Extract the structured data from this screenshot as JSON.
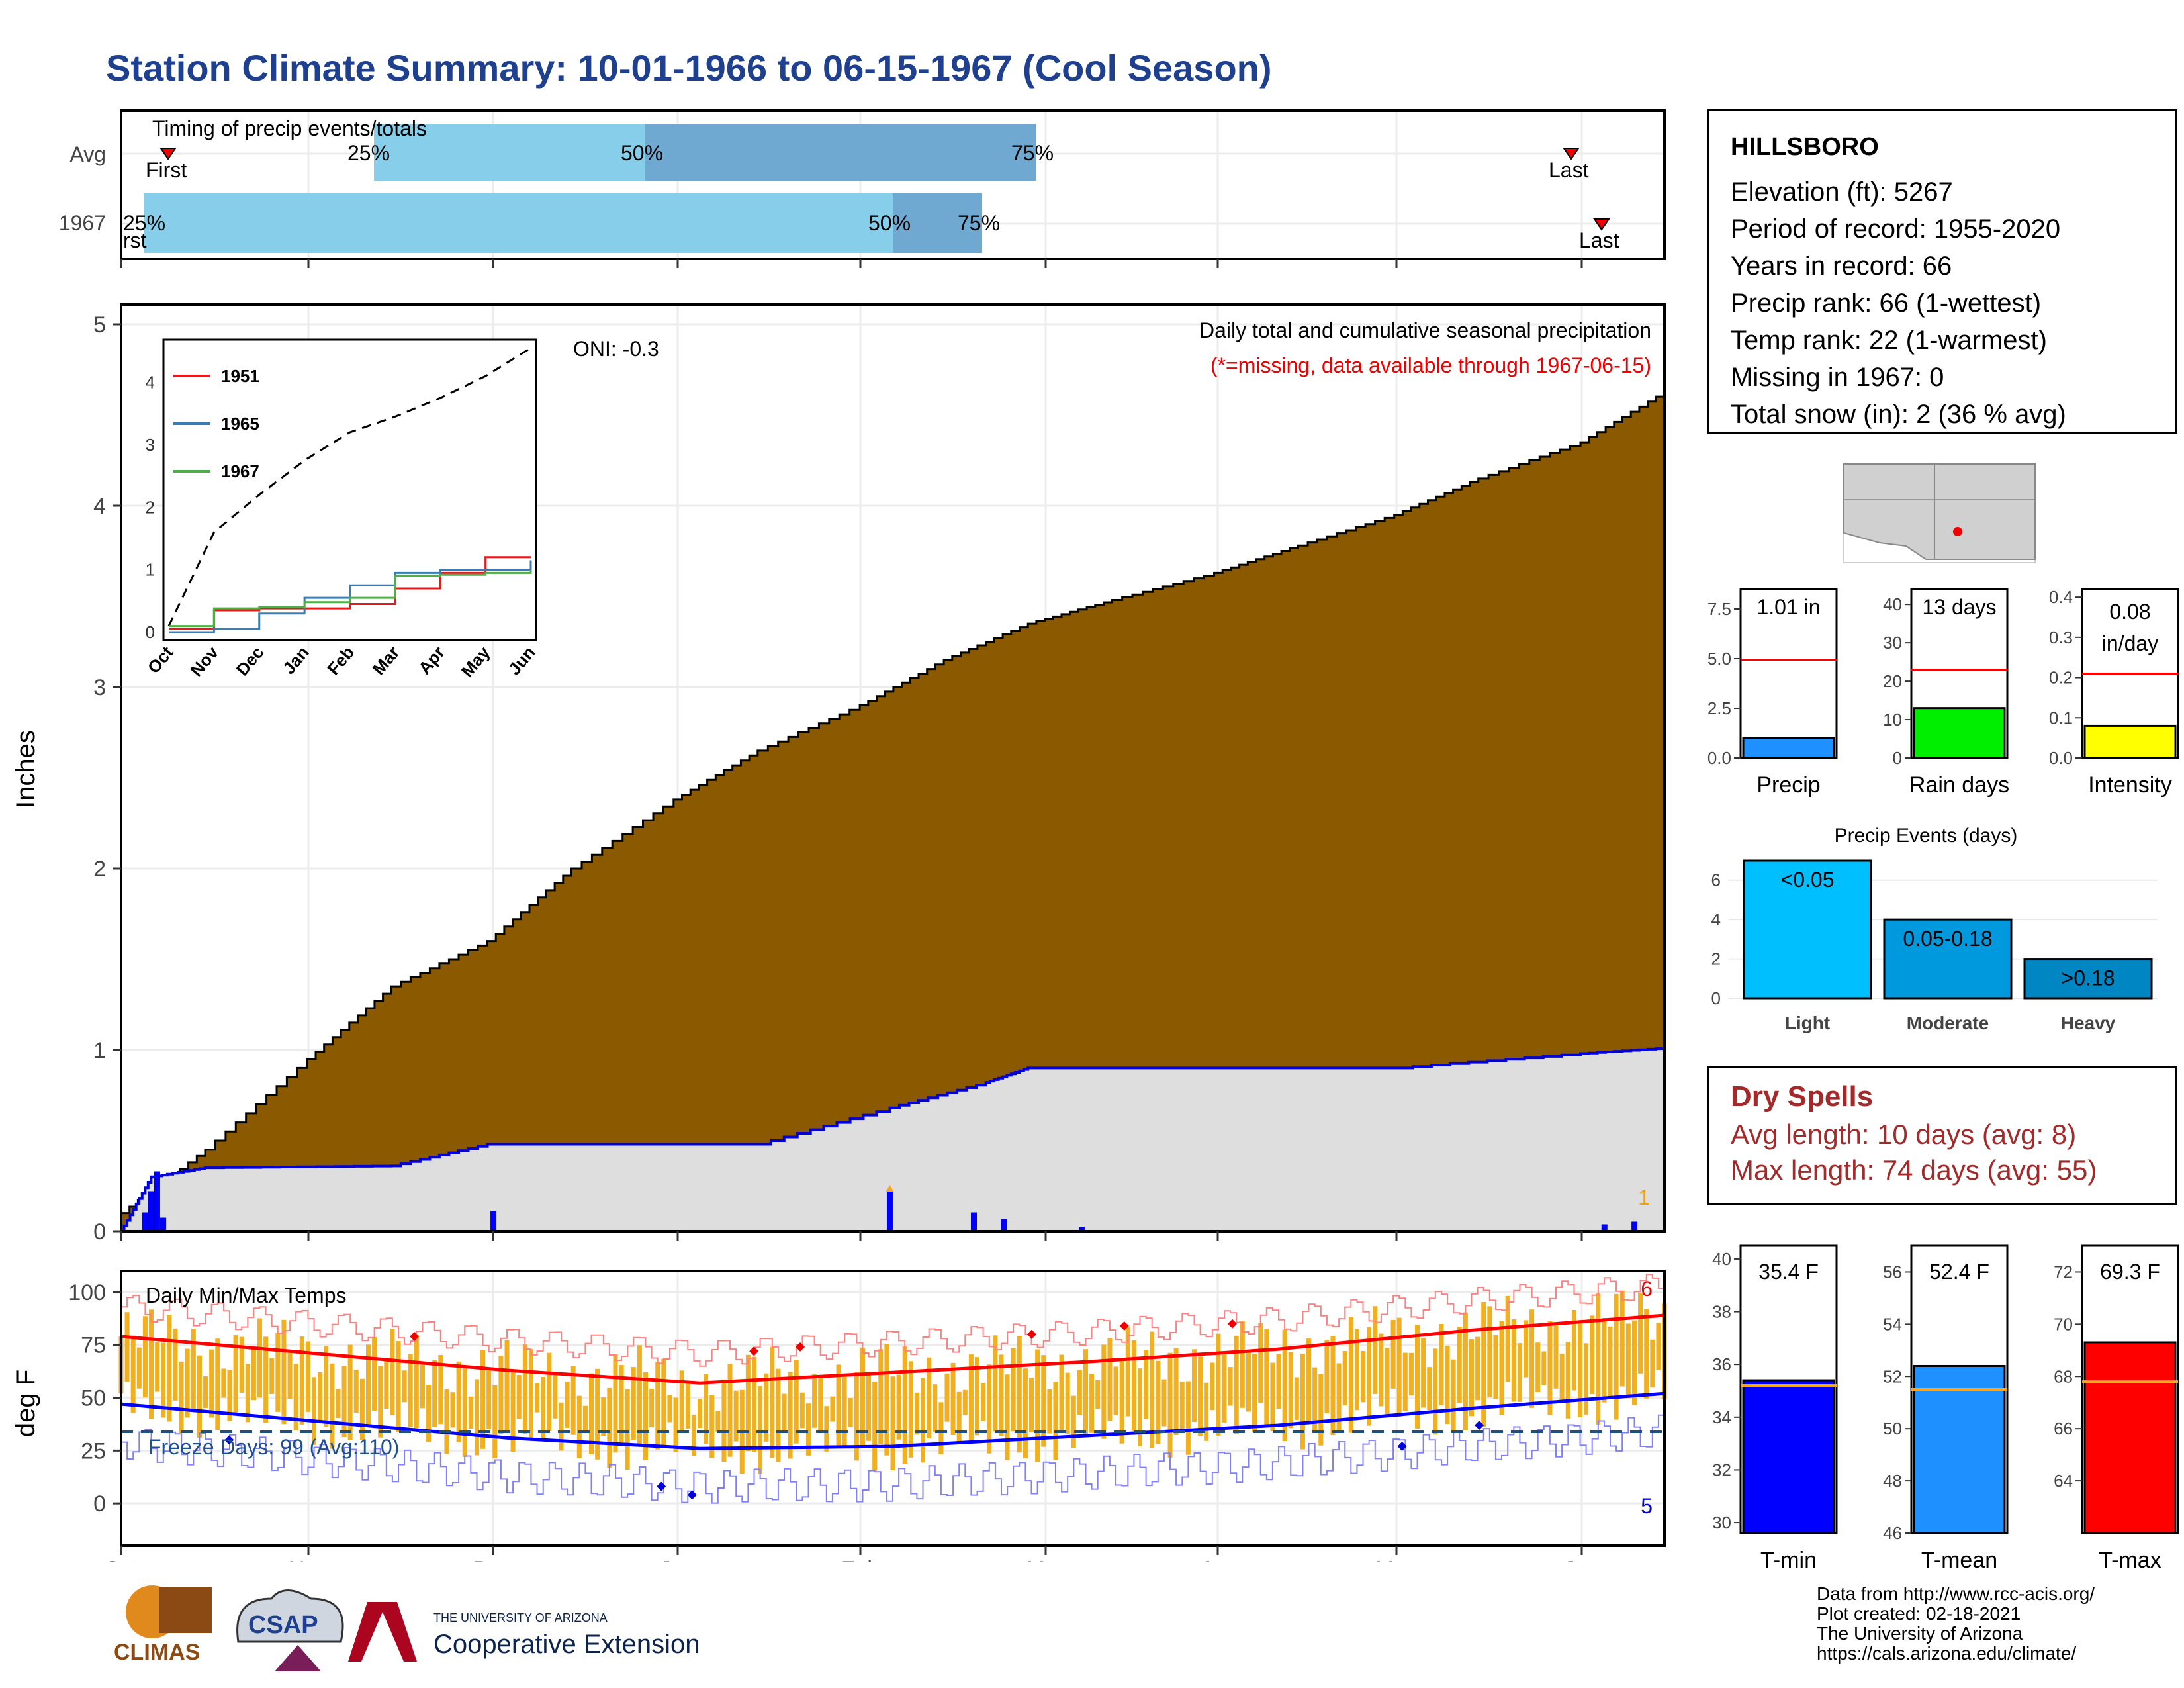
{
  "title": "Station Climate Summary: 10-01-1966 to 06-15-1967 (Cool Season)",
  "timing": {
    "label": "Timing of precip events/totals",
    "rows": [
      "Avg",
      "1967"
    ],
    "avg": {
      "first_label": "First",
      "last_label": "Last",
      "p25": "25%",
      "p50": "50%",
      "p75": "75%"
    },
    "y1967": {
      "first_label": "rst",
      "last_label": "Last",
      "p25": "25%",
      "p50": "50%",
      "p75": "75%"
    }
  },
  "main_chart": {
    "ylabel": "Inches",
    "yticks": [
      "0",
      "1",
      "2",
      "3",
      "4",
      "5"
    ],
    "months": [
      "Oct",
      "Nov",
      "Dec",
      "Jan",
      "Feb",
      "Mar",
      "Apr",
      "May",
      "Jun"
    ],
    "oni": "ONI: -0.3",
    "subtitle1": "Daily total and cumulative seasonal precipitation",
    "subtitle2": "(*=missing, data available through 1967-06-15)",
    "right_count": "1"
  },
  "inset": {
    "series": [
      {
        "name": "1951",
        "color": "#e41a1c"
      },
      {
        "name": "1965",
        "color": "#377eb8"
      },
      {
        "name": "1967",
        "color": "#4daf4a"
      }
    ],
    "yticks": [
      "0",
      "1",
      "2",
      "3",
      "4"
    ],
    "months": [
      "Oct",
      "Nov",
      "Dec",
      "Jan",
      "Feb",
      "Mar",
      "Apr",
      "May",
      "Jun"
    ]
  },
  "temp_chart": {
    "ylabel": "deg F",
    "title": "Daily Min/Max Temps",
    "yticks": [
      "0",
      "25",
      "50",
      "75",
      "100"
    ],
    "freeze": "Freeze Days: 99 (Avg:110)",
    "top_count": "6",
    "bottom_count": "5"
  },
  "station": {
    "name": "HILLSBORO",
    "lines": [
      "Elevation (ft): 5267",
      "Period of record: 1955-2020",
      "Years in record: 66",
      "Precip rank: 66 (1-wettest)",
      "Temp rank: 22 (1-warmest)",
      "Missing in 1967: 0",
      "Total snow (in): 2 (36 % avg)"
    ]
  },
  "mini_bars": [
    {
      "label": "Precip",
      "value_label": "1.01 in",
      "value": 1.01,
      "avg": 4.95,
      "max": 8.5,
      "ticks": [
        "0.0",
        "2.5",
        "5.0",
        "7.5"
      ],
      "color": "#1e90ff"
    },
    {
      "label": "Rain days",
      "value_label": "13 days",
      "value": 13,
      "avg": 23,
      "max": 44,
      "ticks": [
        "0",
        "10",
        "20",
        "30",
        "40"
      ],
      "color": "#00ee00"
    },
    {
      "label": "Intensity",
      "value_label": "0.08 in/day",
      "value": 0.08,
      "avg": 0.21,
      "max": 0.42,
      "ticks": [
        "0.0",
        "0.1",
        "0.2",
        "0.3",
        "0.4"
      ],
      "color": "#ffff00"
    }
  ],
  "precip_events": {
    "title": "Precip Events (days)",
    "yticks": [
      "0",
      "2",
      "4",
      "6"
    ],
    "bars": [
      {
        "label": "Light",
        "range": "<0.05",
        "value": 7,
        "color": "#00bfff"
      },
      {
        "label": "Moderate",
        "range": "0.05-0.18",
        "value": 4,
        "color": "#0099dd"
      },
      {
        "label": "Heavy",
        "range": ">0.18",
        "value": 2,
        "color": "#0086c3"
      }
    ]
  },
  "dry_spells": {
    "title": "Dry Spells",
    "avg": "Avg length: 10 days (avg: 8)",
    "max": "Max length: 74 days (avg: 55)"
  },
  "temp_bars": [
    {
      "label": "T-min",
      "value_label": "35.4 F",
      "value": 35.4,
      "avg": 35.2,
      "min": 29.6,
      "max": 40.5,
      "ticks": [
        "30",
        "32",
        "34",
        "36",
        "38",
        "40"
      ],
      "color": "#0000ff"
    },
    {
      "label": "T-mean",
      "value_label": "52.4 F",
      "value": 52.4,
      "avg": 51.5,
      "min": 46,
      "max": 57,
      "ticks": [
        "46",
        "48",
        "50",
        "52",
        "54",
        "56"
      ],
      "color": "#1e90ff"
    },
    {
      "label": "T-max",
      "value_label": "69.3 F",
      "value": 69.3,
      "avg": 67.8,
      "min": 62,
      "max": 73,
      "ticks": [
        "64",
        "66",
        "68",
        "70",
        "72"
      ],
      "color": "#ff0000"
    }
  ],
  "credits": [
    "Data from http://www.rcc-acis.org/",
    "Plot created: 02-18-2021",
    "The University of Arizona",
    "https://cals.arizona.edu/climate/"
  ],
  "logos": {
    "climas": "CLIMAS",
    "csap": "CSAP",
    "ua_small": "THE UNIVERSITY OF ARIZONA",
    "ua_big": "Cooperative Extension"
  },
  "chart_data": [
    {
      "type": "area",
      "title": "Daily total and cumulative seasonal precipitation",
      "ylabel": "Inches",
      "ylim": [
        0,
        5
      ],
      "series": [
        {
          "name": "",
          "x": [
            "1966-10-01",
            "1966-10-15",
            "1966-11-01",
            "1966-11-15",
            "1966-12-01",
            "1966-12-15",
            "1967-01-01",
            "1967-01-15",
            "1967-02-01",
            "1967-02-15",
            "1967-03-01",
            "1967-03-15",
            "1967-04-01",
            "1967-04-15",
            "1967-05-01",
            "1967-05-15",
            "1967-06-01",
            "1967-06-15"
          ],
          "values": [
            0.1,
            0.45,
            0.95,
            1.35,
            1.6,
            2.0,
            2.38,
            2.65,
            2.9,
            3.15,
            3.35,
            3.48,
            3.63,
            3.78,
            3.95,
            4.15,
            4.35,
            4.63
          ]
        },
        {
          "name": "",
          "x": [
            "1966-10-01",
            "1966-10-06",
            "1966-10-15",
            "1966-11-15",
            "1966-12-01",
            "1967-01-15",
            "1967-02-06",
            "1967-02-22",
            "1967-03-01",
            "1967-04-01",
            "1967-05-01",
            "1967-06-01",
            "1967-06-15"
          ],
          "values": [
            0.0,
            0.3,
            0.35,
            0.36,
            0.48,
            0.48,
            0.68,
            0.82,
            0.9,
            0.9,
            0.9,
            0.98,
            1.01
          ]
        }
      ]
    },
    {
      "type": "line",
      "title": "Daily Min/Max Temps",
      "ylabel": "deg F",
      "ylim": [
        -20,
        110
      ],
      "x": [
        "Oct",
        "Nov",
        "Dec",
        "Jan",
        "Feb",
        "Mar",
        "Apr",
        "May",
        "Jun"
      ],
      "series": [
        {
          "name": "",
          "values": [
            79,
            71,
            63,
            57,
            62,
            67,
            73,
            82,
            89
          ]
        },
        {
          "name": "",
          "values": [
            47,
            39,
            31,
            26,
            27,
            32,
            37,
            45,
            52
          ]
        }
      ]
    },
    {
      "type": "line",
      "x": [
        "Oct",
        "Nov",
        "Dec",
        "Jan",
        "Feb",
        "Mar",
        "Apr",
        "May",
        "Jun"
      ],
      "ylim": [
        0,
        4.6
      ],
      "series": [
        {
          "name": "",
          "values": [
            0.1,
            1.6,
            2.2,
            2.75,
            3.2,
            3.45,
            3.75,
            4.1,
            4.55
          ]
        },
        {
          "name": "1951",
          "values": [
            0.05,
            0.35,
            0.38,
            0.38,
            0.45,
            0.7,
            0.95,
            1.2,
            1.2
          ]
        },
        {
          "name": "1965",
          "values": [
            0.0,
            0.05,
            0.3,
            0.55,
            0.75,
            0.95,
            1.0,
            1.0,
            1.15
          ]
        },
        {
          "name": "1967",
          "values": [
            0.1,
            0.38,
            0.4,
            0.48,
            0.55,
            0.9,
            0.92,
            0.95,
            1.0
          ]
        }
      ]
    }
  ]
}
